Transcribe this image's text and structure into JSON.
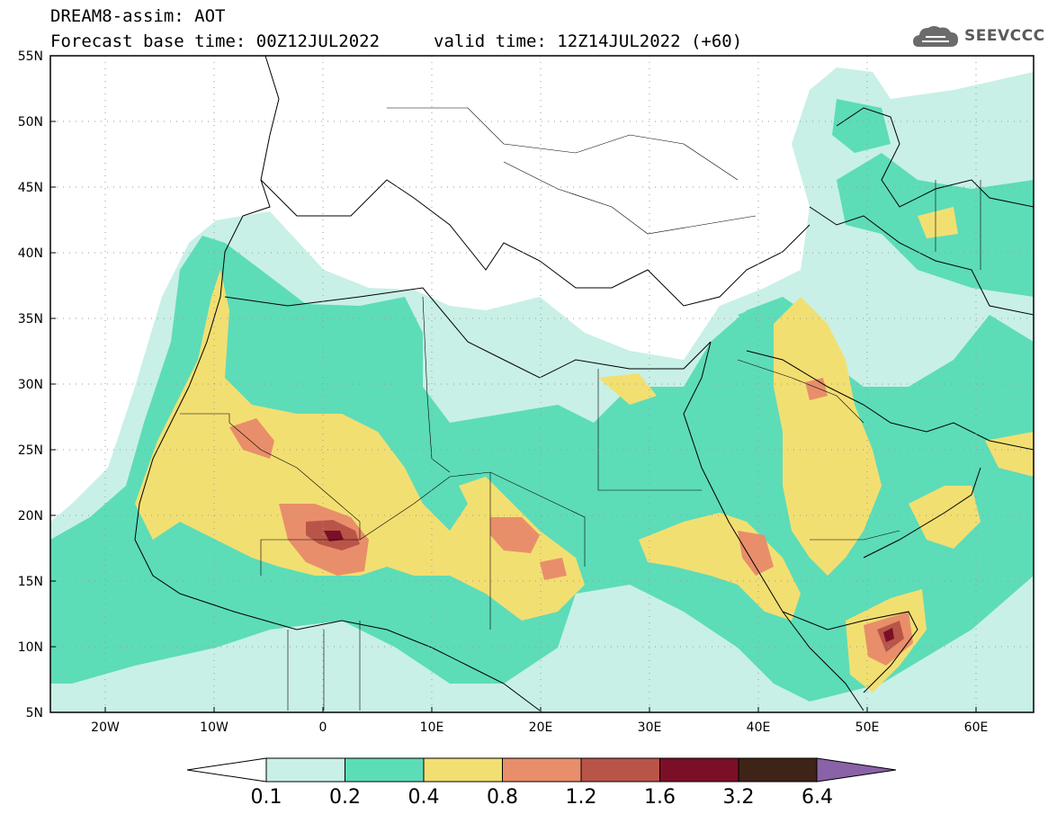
{
  "header": {
    "title": "DREAM8-assim: AOT",
    "base_time": "Forecast base time: 00Z12JUL2022",
    "valid_time": "valid time: 12Z14JUL2022 (+60)",
    "logo_text": "SEEVCCC"
  },
  "axes": {
    "lat_labels": [
      "55N",
      "50N",
      "45N",
      "40N",
      "35N",
      "30N",
      "25N",
      "20N",
      "15N",
      "10N",
      "5N"
    ],
    "lon_labels": [
      "20W",
      "10W",
      "0",
      "10E",
      "20E",
      "30E",
      "40E",
      "50E",
      "60E"
    ]
  },
  "colorbar": {
    "levels": [
      "0.1",
      "0.2",
      "0.4",
      "0.8",
      "1.2",
      "1.6",
      "3.2",
      "6.4"
    ],
    "colors": [
      "#c8f0e6",
      "#5ddcb8",
      "#f2df72",
      "#e98e6a",
      "#b95548",
      "#7c0f28",
      "#3d2416",
      "#8a62a8"
    ]
  },
  "map_colors": {
    "ocean_land": "#ffffff",
    "coast": "#000000",
    "grid": "#9a9a9a"
  }
}
